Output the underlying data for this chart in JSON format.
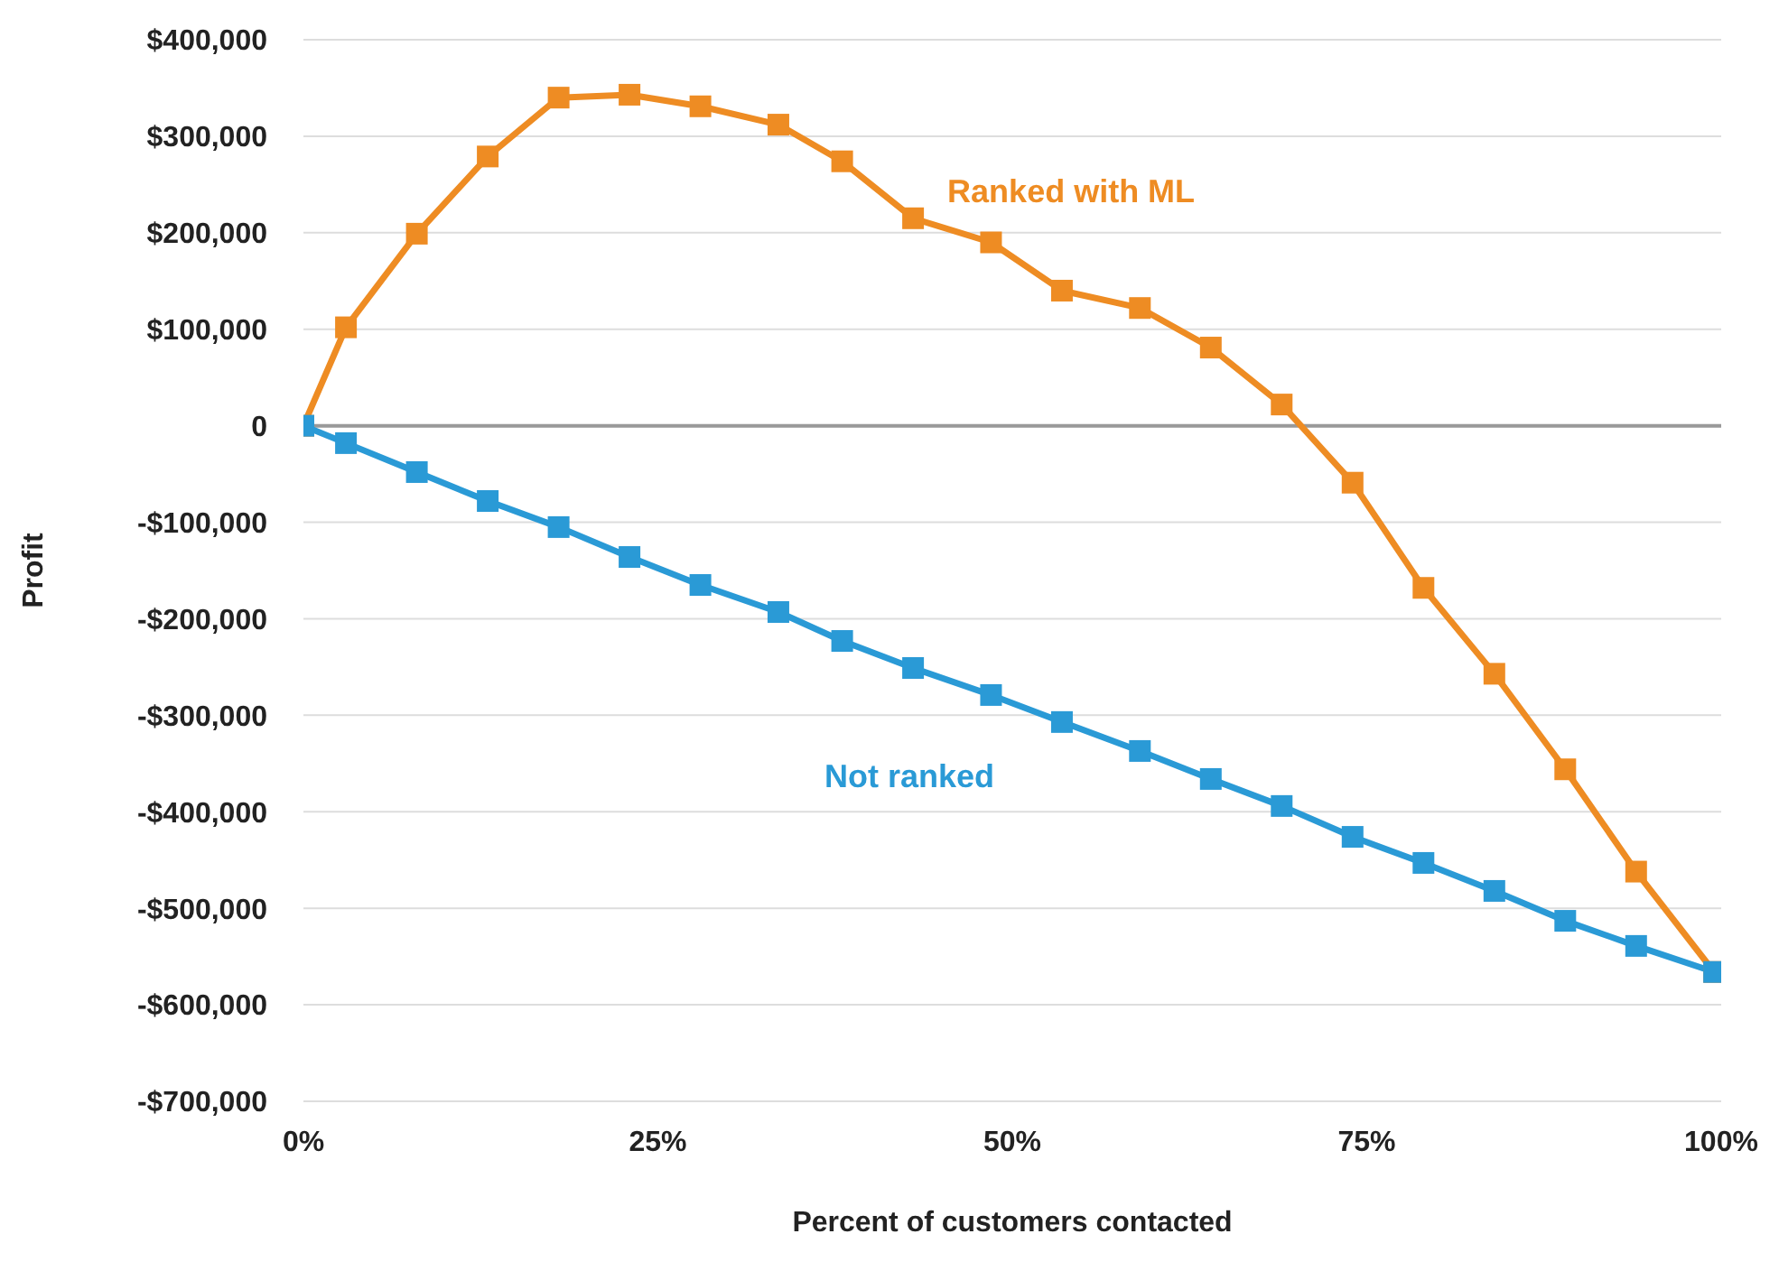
{
  "chart_data": {
    "type": "line",
    "xlabel": "Percent of customers contacted",
    "ylabel": "Profit",
    "x": [
      0,
      3,
      8,
      13,
      18,
      23,
      28,
      33.5,
      38,
      43,
      48.5,
      53.5,
      59,
      64,
      69,
      74,
      79,
      84,
      89,
      94,
      99.5
    ],
    "series": [
      {
        "name": "Ranked with ML",
        "color": "#ee8c23",
        "values": [
          0,
          102000,
          199000,
          279000,
          340000,
          343000,
          331000,
          312000,
          274000,
          215000,
          190000,
          140000,
          122000,
          81000,
          22000,
          -59000,
          -168000,
          -257000,
          -356000,
          -462000,
          -566000
        ]
      },
      {
        "name": "Not ranked",
        "color": "#2a9ad6",
        "values": [
          0,
          -18000,
          -48000,
          -78000,
          -105000,
          -136000,
          -165000,
          -193000,
          -223000,
          -251000,
          -279000,
          -307000,
          -337000,
          -366000,
          -394000,
          -426000,
          -453000,
          -482000,
          -513000,
          -539000,
          -566000
        ]
      }
    ],
    "xlim": [
      0,
      100
    ],
    "xticks": [
      {
        "value": 0,
        "label": "0%"
      },
      {
        "value": 25,
        "label": "25%"
      },
      {
        "value": 50,
        "label": "50%"
      },
      {
        "value": 75,
        "label": "75%"
      },
      {
        "value": 100,
        "label": "100%"
      }
    ],
    "ylim": [
      -700000,
      400000
    ],
    "yticks": [
      {
        "value": -700000,
        "label": "-$700,000"
      },
      {
        "value": -600000,
        "label": "-$600,000"
      },
      {
        "value": -500000,
        "label": "-$500,000"
      },
      {
        "value": -400000,
        "label": "-$400,000"
      },
      {
        "value": -300000,
        "label": "-$300,000"
      },
      {
        "value": -200000,
        "label": "-$200,000"
      },
      {
        "value": -100000,
        "label": "-$100,000"
      },
      0,
      {
        "value": 100000,
        "label": "$100,000"
      },
      {
        "value": 200000,
        "label": "$200,000"
      },
      {
        "value": 300000,
        "label": "$300,000"
      },
      {
        "value": 400000,
        "label": "$400,000"
      }
    ],
    "ref_lines": [
      {
        "axis": "y",
        "value": 0,
        "color": "#999999"
      }
    ],
    "grid": "y",
    "legend": false,
    "marker": "square",
    "line_style": "solid"
  }
}
